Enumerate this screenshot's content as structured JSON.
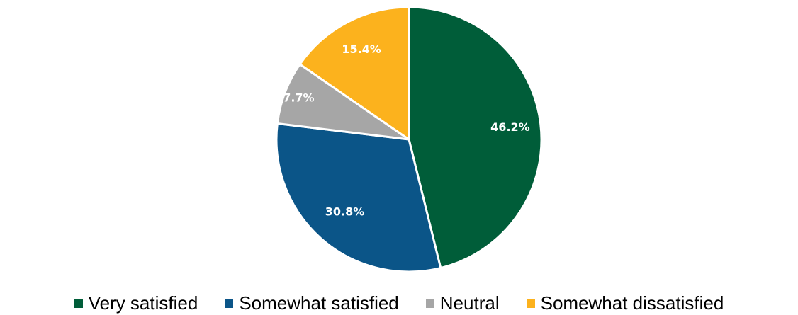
{
  "chart_data": {
    "type": "pie",
    "title": "",
    "categories": [
      "Very satisfied",
      "Somewhat satisfied",
      "Neutral",
      "Somewhat dissatisfied"
    ],
    "values": [
      46.2,
      30.8,
      7.7,
      15.4
    ],
    "labels": [
      "46.2%",
      "30.8%",
      "7.7%",
      "15.4%"
    ],
    "colors": [
      "#005d39",
      "#0b5588",
      "#a6a6a6",
      "#fcb21d"
    ],
    "start_angle": "12 o'clock",
    "direction": "clockwise",
    "legend_position": "bottom"
  }
}
